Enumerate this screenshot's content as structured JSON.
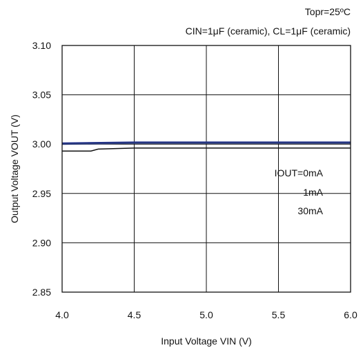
{
  "chart_data": {
    "type": "line",
    "title_lines": [
      "Topr=25ºC",
      "CIN=1μF (ceramic), CL=1μF (ceramic)"
    ],
    "xlabel": "Input Voltage VIN (V)",
    "ylabel": "Output Voltage VOUT (V)",
    "xlim": [
      4.0,
      6.0
    ],
    "ylim": [
      2.85,
      3.1
    ],
    "xticks": [
      4.0,
      4.5,
      5.0,
      5.5,
      6.0
    ],
    "xtick_labels": [
      "4.0",
      "4.5",
      "5.0",
      "5.5",
      "6.0"
    ],
    "yticks": [
      2.85,
      2.9,
      2.95,
      3.0,
      3.05,
      3.1
    ],
    "ytick_labels": [
      "2.85",
      "2.90",
      "2.95",
      "3.00",
      "3.05",
      "3.10"
    ],
    "grid": true,
    "legend": [
      "IOUT=0mA",
      "1mA",
      "30mA"
    ],
    "legend_placement": "right",
    "series": [
      {
        "name": "IOUT=0mA",
        "color": "#1f2f8a",
        "points": [
          [
            4.0,
            3.001
          ],
          [
            4.5,
            3.002
          ],
          [
            5.0,
            3.002
          ],
          [
            5.5,
            3.002
          ],
          [
            6.0,
            3.002
          ]
        ]
      },
      {
        "name": "1mA",
        "color": "#2b3b7a",
        "points": [
          [
            4.0,
            3.0
          ],
          [
            4.5,
            3.001
          ],
          [
            5.0,
            3.001
          ],
          [
            5.5,
            3.001
          ],
          [
            6.0,
            3.001
          ]
        ]
      },
      {
        "name": "30mA",
        "color": "#111111",
        "points": [
          [
            4.0,
            2.993
          ],
          [
            4.2,
            2.993
          ],
          [
            4.25,
            2.995
          ],
          [
            4.5,
            2.996
          ],
          [
            5.0,
            2.996
          ],
          [
            5.5,
            2.996
          ],
          [
            6.0,
            2.996
          ]
        ]
      }
    ]
  }
}
